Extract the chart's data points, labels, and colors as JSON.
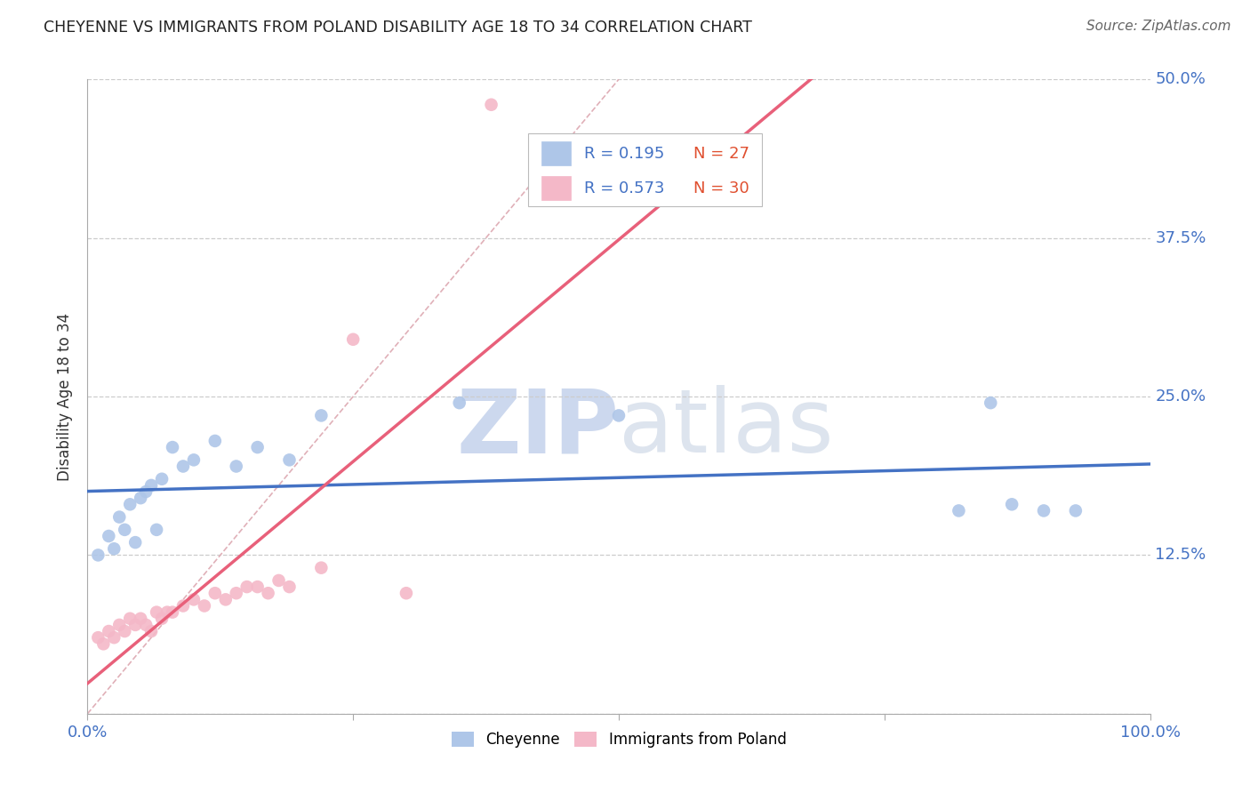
{
  "title": "CHEYENNE VS IMMIGRANTS FROM POLAND DISABILITY AGE 18 TO 34 CORRELATION CHART",
  "source": "Source: ZipAtlas.com",
  "ylabel": "Disability Age 18 to 34",
  "xlim": [
    0.0,
    1.0
  ],
  "ylim": [
    0.0,
    0.5
  ],
  "xticks": [
    0.0,
    0.25,
    0.5,
    0.75,
    1.0
  ],
  "xticklabels": [
    "0.0%",
    "",
    "",
    "",
    "100.0%"
  ],
  "ytick_positions": [
    0.0,
    0.125,
    0.25,
    0.375,
    0.5
  ],
  "yticklabels": [
    "",
    "12.5%",
    "25.0%",
    "37.5%",
    "50.0%"
  ],
  "grid_color": "#cccccc",
  "background_color": "#ffffff",
  "cheyenne_color": "#aec6e8",
  "poland_color": "#f4b8c8",
  "cheyenne_line_color": "#4472c4",
  "poland_line_color": "#e8607a",
  "diagonal_color": "#e0b0b8",
  "R_cheyenne": 0.195,
  "N_cheyenne": 27,
  "R_poland": 0.573,
  "N_poland": 30,
  "legend_R_color": "#4472c4",
  "legend_N_color": "#e05030",
  "tick_label_color": "#4472c4",
  "cheyenne_x": [
    0.01,
    0.02,
    0.025,
    0.03,
    0.035,
    0.04,
    0.045,
    0.05,
    0.055,
    0.06,
    0.065,
    0.07,
    0.08,
    0.09,
    0.1,
    0.12,
    0.14,
    0.16,
    0.19,
    0.22,
    0.35,
    0.5,
    0.82,
    0.85,
    0.87,
    0.9,
    0.93
  ],
  "cheyenne_y": [
    0.125,
    0.14,
    0.13,
    0.155,
    0.145,
    0.165,
    0.135,
    0.17,
    0.175,
    0.18,
    0.145,
    0.185,
    0.21,
    0.195,
    0.2,
    0.215,
    0.195,
    0.21,
    0.2,
    0.235,
    0.245,
    0.235,
    0.16,
    0.245,
    0.165,
    0.16,
    0.16
  ],
  "poland_x": [
    0.01,
    0.015,
    0.02,
    0.025,
    0.03,
    0.035,
    0.04,
    0.045,
    0.05,
    0.055,
    0.06,
    0.065,
    0.07,
    0.075,
    0.08,
    0.09,
    0.1,
    0.11,
    0.12,
    0.13,
    0.14,
    0.15,
    0.16,
    0.17,
    0.18,
    0.19,
    0.22,
    0.25,
    0.3,
    0.38
  ],
  "poland_y": [
    0.06,
    0.055,
    0.065,
    0.06,
    0.07,
    0.065,
    0.075,
    0.07,
    0.075,
    0.07,
    0.065,
    0.08,
    0.075,
    0.08,
    0.08,
    0.085,
    0.09,
    0.085,
    0.095,
    0.09,
    0.095,
    0.1,
    0.1,
    0.095,
    0.105,
    0.1,
    0.115,
    0.295,
    0.095,
    0.48
  ]
}
